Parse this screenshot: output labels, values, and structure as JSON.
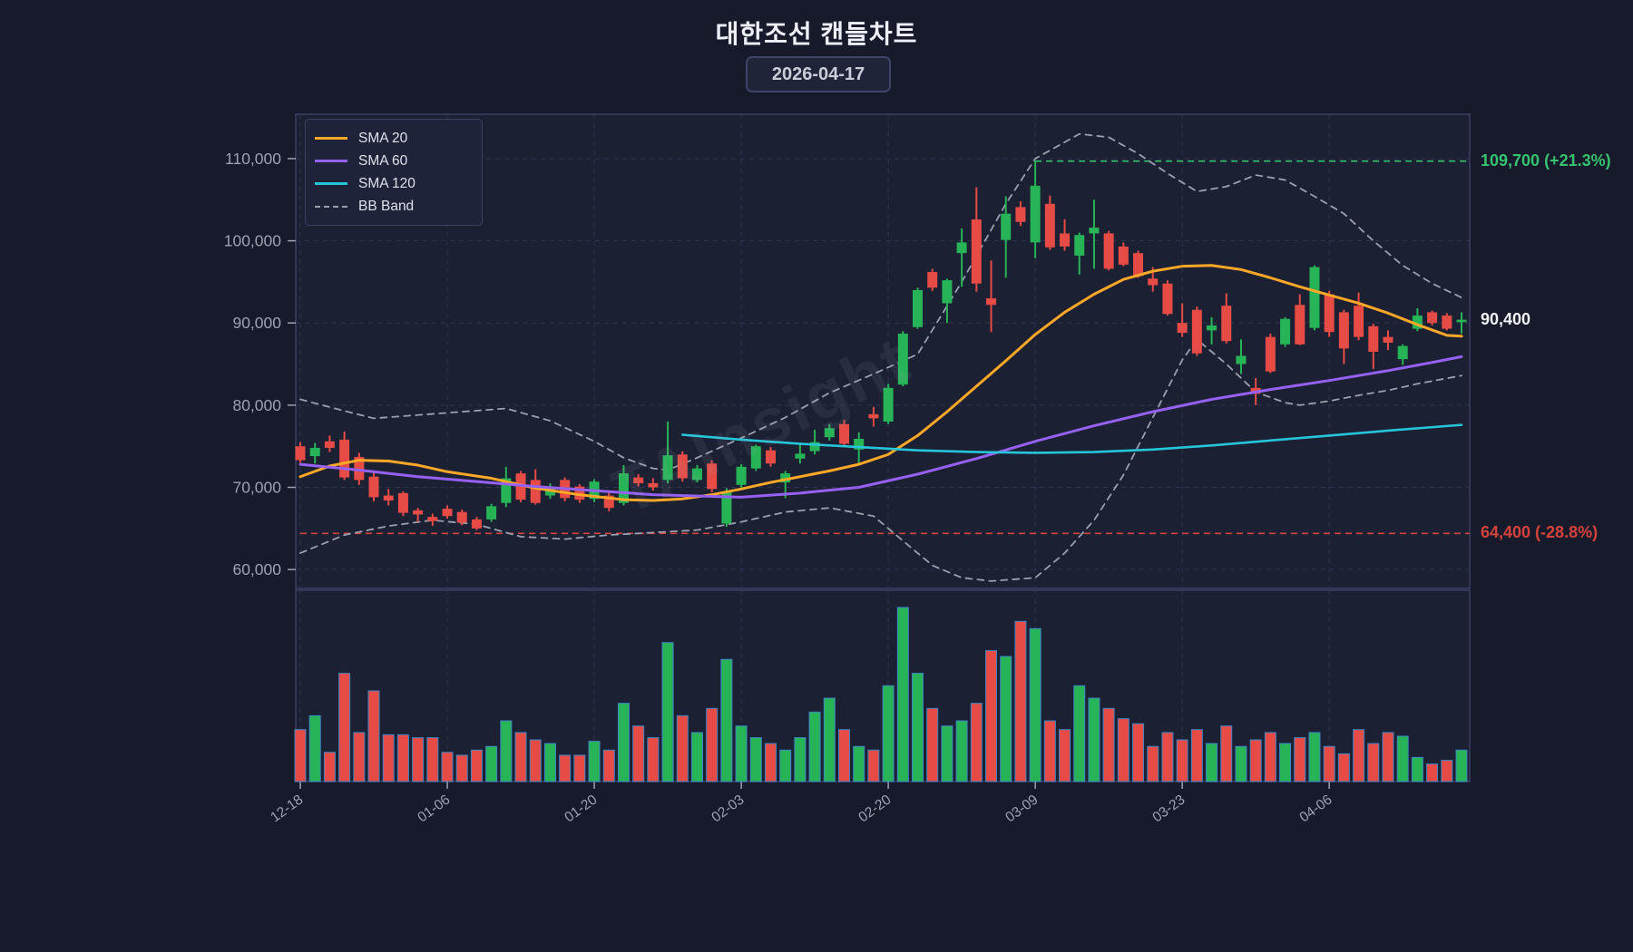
{
  "title": "대한조선 캔들차트",
  "date_badge": "2026-04-17",
  "watermark": "TAInsight",
  "legend": [
    {
      "label": "SMA 20",
      "color": "#ffa726",
      "style": "solid"
    },
    {
      "label": "SMA 60",
      "color": "#9661f2",
      "style": "solid"
    },
    {
      "label": "SMA 120",
      "color": "#26c6da",
      "style": "solid"
    },
    {
      "label": "BB Band",
      "color": "#9aa0ad",
      "style": "dashed"
    }
  ],
  "colors": {
    "background": "#171a2b",
    "pane": "#1c2033",
    "grid": "#2e3452",
    "border": "#3d4164",
    "up": "#27b457",
    "down": "#e64b45",
    "volume_stroke": "#3d85c6",
    "sma20": "#ffa726",
    "sma60": "#9661f2",
    "sma120": "#26c6da",
    "bb": "#9aa0ad",
    "text_primary": "#f2f4f8",
    "text_muted": "#9aa2b4",
    "high_line": "#36c26e",
    "low_line": "#d4433b"
  },
  "chart_data": {
    "type": "candlestick",
    "title": "대한조선 캔들차트",
    "ylabel": "",
    "ylim": [
      57700,
      115400
    ],
    "y_ticks": [
      60000,
      70000,
      80000,
      90000,
      100000,
      110000
    ],
    "x_tick_indices": [
      0,
      10,
      20,
      30,
      40,
      50,
      60,
      70
    ],
    "x_tick_labels": [
      "12-18",
      "01-06",
      "01-20",
      "02-03",
      "02-20",
      "03-09",
      "03-23",
      "04-06"
    ],
    "grid": true,
    "legend_position": "upper-left",
    "ohlcv": [
      [
        75000,
        75500,
        73000,
        73300,
        710000
      ],
      [
        73800,
        75400,
        72900,
        74800,
        900000
      ],
      [
        75600,
        76300,
        74300,
        74800,
        400000
      ],
      [
        75800,
        76800,
        70900,
        71200,
        1480000
      ],
      [
        73700,
        74200,
        70300,
        70900,
        670000
      ],
      [
        71300,
        71800,
        68300,
        68800,
        1240000
      ],
      [
        69000,
        69800,
        67800,
        68400,
        640000
      ],
      [
        69300,
        69500,
        66500,
        66900,
        640000
      ],
      [
        67200,
        67500,
        65800,
        66700,
        600000
      ],
      [
        66400,
        66800,
        65300,
        65900,
        600000
      ],
      [
        67400,
        67800,
        66200,
        66500,
        400000
      ],
      [
        67000,
        67300,
        65400,
        65700,
        360000
      ],
      [
        66100,
        66400,
        64800,
        65000,
        430000
      ],
      [
        66100,
        68000,
        65800,
        67700,
        480000
      ],
      [
        68100,
        72500,
        67600,
        71100,
        830000
      ],
      [
        71700,
        72000,
        68200,
        68500,
        670000
      ],
      [
        70900,
        72200,
        67900,
        68100,
        570000
      ],
      [
        69000,
        70500,
        68600,
        69900,
        520000
      ],
      [
        70900,
        71200,
        68300,
        68700,
        360000
      ],
      [
        70100,
        70400,
        68100,
        68500,
        360000
      ],
      [
        68600,
        71000,
        68200,
        70700,
        550000
      ],
      [
        69000,
        69400,
        67100,
        67500,
        430000
      ],
      [
        68100,
        72700,
        67800,
        71700,
        1070000
      ],
      [
        71200,
        71600,
        70100,
        70500,
        760000
      ],
      [
        70500,
        71100,
        69600,
        70000,
        600000
      ],
      [
        70900,
        78000,
        70500,
        73900,
        1900000
      ],
      [
        74000,
        74400,
        70700,
        71100,
        900000
      ],
      [
        70900,
        72700,
        70600,
        72300,
        670000
      ],
      [
        72900,
        73300,
        69400,
        69800,
        1000000
      ],
      [
        65600,
        69900,
        65200,
        69500,
        1670000
      ],
      [
        70300,
        72800,
        70000,
        72500,
        760000
      ],
      [
        72300,
        75200,
        72000,
        75000,
        600000
      ],
      [
        74500,
        74900,
        72500,
        72900,
        520000
      ],
      [
        70600,
        72000,
        68700,
        71700,
        430000
      ],
      [
        73500,
        75300,
        72900,
        74100,
        600000
      ],
      [
        74400,
        77000,
        74000,
        75500,
        950000
      ],
      [
        76100,
        77700,
        75700,
        77200,
        1140000
      ],
      [
        77700,
        78200,
        75000,
        75300,
        710000
      ],
      [
        74600,
        76700,
        72700,
        75900,
        480000
      ],
      [
        78900,
        79800,
        77400,
        78400,
        430000
      ],
      [
        78000,
        82600,
        77700,
        82100,
        1310000
      ],
      [
        82500,
        89000,
        82300,
        88700,
        2380000
      ],
      [
        89500,
        94300,
        89300,
        94000,
        1480000
      ],
      [
        96200,
        96600,
        93900,
        94300,
        1000000
      ],
      [
        92400,
        95400,
        90000,
        95200,
        760000
      ],
      [
        98500,
        101500,
        94400,
        99800,
        830000
      ],
      [
        102600,
        106500,
        93800,
        94800,
        1070000
      ],
      [
        93000,
        97600,
        88900,
        92200,
        1790000
      ],
      [
        100100,
        105400,
        95500,
        103300,
        1710000
      ],
      [
        104100,
        104800,
        101800,
        102300,
        2190000
      ],
      [
        99800,
        109700,
        97900,
        106700,
        2090000
      ],
      [
        104500,
        105500,
        98900,
        99200,
        830000
      ],
      [
        100900,
        102600,
        98800,
        99300,
        710000
      ],
      [
        98200,
        101000,
        95900,
        100700,
        1310000
      ],
      [
        100900,
        105000,
        96600,
        101600,
        1140000
      ],
      [
        100900,
        101200,
        96400,
        96600,
        1000000
      ],
      [
        99300,
        99800,
        96900,
        97100,
        860000
      ],
      [
        98500,
        98800,
        95500,
        95700,
        790000
      ],
      [
        95400,
        96800,
        93800,
        94600,
        480000
      ],
      [
        94800,
        95200,
        90900,
        91100,
        670000
      ],
      [
        90000,
        92400,
        88300,
        88800,
        570000
      ],
      [
        91600,
        92000,
        86000,
        86300,
        710000
      ],
      [
        89100,
        90700,
        87400,
        89700,
        520000
      ],
      [
        92100,
        93600,
        87500,
        87800,
        760000
      ],
      [
        85000,
        88000,
        83800,
        86000,
        480000
      ],
      [
        82100,
        83300,
        80000,
        81400,
        570000
      ],
      [
        88300,
        88700,
        83900,
        84100,
        670000
      ],
      [
        87400,
        90700,
        87100,
        90500,
        520000
      ],
      [
        92200,
        93500,
        87300,
        87400,
        600000
      ],
      [
        89400,
        97000,
        89100,
        96800,
        670000
      ],
      [
        93500,
        93900,
        88300,
        88900,
        480000
      ],
      [
        91300,
        91600,
        85000,
        86900,
        380000
      ],
      [
        92100,
        93700,
        87900,
        88300,
        710000
      ],
      [
        89600,
        89900,
        84400,
        86500,
        520000
      ],
      [
        88300,
        89100,
        86700,
        87600,
        670000
      ],
      [
        85600,
        87400,
        84900,
        87200,
        620000
      ],
      [
        89300,
        91800,
        89000,
        90900,
        330000
      ],
      [
        91300,
        91500,
        89700,
        90000,
        240000
      ],
      [
        90900,
        91200,
        89100,
        89300,
        290000
      ],
      [
        90100,
        91300,
        88700,
        90400,
        430000
      ]
    ],
    "overlays": {
      "sma20": [
        [
          0,
          71300
        ],
        [
          2,
          72600
        ],
        [
          4,
          73300
        ],
        [
          6,
          73200
        ],
        [
          8,
          72700
        ],
        [
          10,
          71900
        ],
        [
          13,
          71100
        ],
        [
          16,
          69900
        ],
        [
          19,
          69100
        ],
        [
          22,
          68500
        ],
        [
          24,
          68400
        ],
        [
          26,
          68600
        ],
        [
          28,
          69100
        ],
        [
          30,
          69800
        ],
        [
          32,
          70600
        ],
        [
          34,
          71300
        ],
        [
          36,
          72000
        ],
        [
          38,
          72800
        ],
        [
          40,
          74000
        ],
        [
          42,
          76300
        ],
        [
          44,
          79200
        ],
        [
          46,
          82300
        ],
        [
          48,
          85400
        ],
        [
          50,
          88600
        ],
        [
          52,
          91300
        ],
        [
          54,
          93500
        ],
        [
          56,
          95300
        ],
        [
          58,
          96300
        ],
        [
          60,
          96900
        ],
        [
          62,
          97000
        ],
        [
          64,
          96500
        ],
        [
          66,
          95500
        ],
        [
          68,
          94400
        ],
        [
          70,
          93400
        ],
        [
          72,
          92400
        ],
        [
          74,
          91200
        ],
        [
          76,
          89800
        ],
        [
          78,
          88500
        ],
        [
          79,
          88400
        ]
      ],
      "sma60": [
        [
          0,
          72800
        ],
        [
          4,
          72100
        ],
        [
          8,
          71300
        ],
        [
          12,
          70700
        ],
        [
          16,
          70100
        ],
        [
          20,
          69600
        ],
        [
          24,
          69100
        ],
        [
          28,
          68900
        ],
        [
          30,
          68800
        ],
        [
          34,
          69300
        ],
        [
          38,
          70000
        ],
        [
          42,
          71600
        ],
        [
          46,
          73500
        ],
        [
          50,
          75600
        ],
        [
          54,
          77500
        ],
        [
          58,
          79200
        ],
        [
          62,
          80700
        ],
        [
          66,
          81900
        ],
        [
          70,
          83000
        ],
        [
          74,
          84200
        ],
        [
          77,
          85200
        ],
        [
          79,
          85900
        ]
      ],
      "sma120": [
        [
          26,
          76400
        ],
        [
          30,
          75800
        ],
        [
          34,
          75300
        ],
        [
          38,
          74900
        ],
        [
          42,
          74500
        ],
        [
          46,
          74300
        ],
        [
          50,
          74200
        ],
        [
          54,
          74300
        ],
        [
          58,
          74600
        ],
        [
          62,
          75100
        ],
        [
          66,
          75700
        ],
        [
          70,
          76300
        ],
        [
          74,
          76900
        ],
        [
          79,
          77600
        ]
      ],
      "bb_upper": [
        [
          0,
          80700
        ],
        [
          3,
          79300
        ],
        [
          5,
          78400
        ],
        [
          8,
          78800
        ],
        [
          11,
          79200
        ],
        [
          14,
          79600
        ],
        [
          17,
          78100
        ],
        [
          20,
          75600
        ],
        [
          22,
          73600
        ],
        [
          24,
          72300
        ],
        [
          25,
          72100
        ],
        [
          27,
          73600
        ],
        [
          30,
          76000
        ],
        [
          33,
          78500
        ],
        [
          36,
          81500
        ],
        [
          39,
          83800
        ],
        [
          42,
          86200
        ],
        [
          45,
          95000
        ],
        [
          48,
          104500
        ],
        [
          50,
          110000
        ],
        [
          53,
          113000
        ],
        [
          55,
          112600
        ],
        [
          57,
          110600
        ],
        [
          59,
          108200
        ],
        [
          61,
          106000
        ],
        [
          63,
          106600
        ],
        [
          65,
          108000
        ],
        [
          67,
          107400
        ],
        [
          69,
          105400
        ],
        [
          71,
          103300
        ],
        [
          73,
          100000
        ],
        [
          75,
          97000
        ],
        [
          77,
          94800
        ],
        [
          79,
          93100
        ]
      ],
      "bb_lower": [
        [
          0,
          62000
        ],
        [
          3,
          64200
        ],
        [
          6,
          65300
        ],
        [
          9,
          66000
        ],
        [
          12,
          65500
        ],
        [
          15,
          64000
        ],
        [
          18,
          63700
        ],
        [
          21,
          64200
        ],
        [
          24,
          64500
        ],
        [
          27,
          64800
        ],
        [
          30,
          65800
        ],
        [
          33,
          67000
        ],
        [
          36,
          67500
        ],
        [
          39,
          66500
        ],
        [
          41,
          63500
        ],
        [
          43,
          60500
        ],
        [
          45,
          59000
        ],
        [
          47,
          58600
        ],
        [
          50,
          59000
        ],
        [
          52,
          62000
        ],
        [
          54,
          66000
        ],
        [
          56,
          71500
        ],
        [
          58,
          78500
        ],
        [
          60,
          85500
        ],
        [
          61,
          88000
        ],
        [
          63,
          85000
        ],
        [
          65,
          81600
        ],
        [
          67,
          80300
        ],
        [
          68,
          80000
        ],
        [
          70,
          80500
        ],
        [
          72,
          81200
        ],
        [
          74,
          81800
        ],
        [
          76,
          82600
        ],
        [
          79,
          83600
        ]
      ]
    },
    "hlines": [
      {
        "price": 109700,
        "label": "109,700 (+21.3%)",
        "color": "#36c26e",
        "start_index": 50
      },
      {
        "price": 64400,
        "label": "64,400 (-28.8%)",
        "color": "#d4433b",
        "start_index": 0
      }
    ],
    "last_price": {
      "value": 90400,
      "label": "90,400"
    }
  }
}
